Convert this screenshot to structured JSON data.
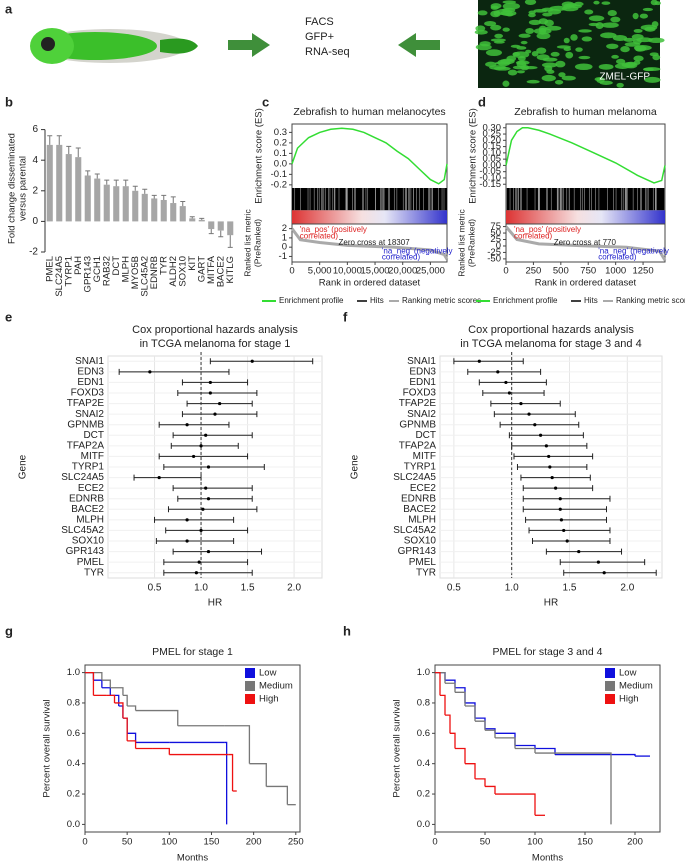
{
  "chart_data": [
    {
      "type": "image-flow",
      "panel": "a",
      "text": [
        "FACS",
        "GFP+",
        "RNA-seq"
      ],
      "image_label": "ZMEL-GFP"
    },
    {
      "type": "bar",
      "panel": "b",
      "ylabel": [
        "Fold change disseminated",
        "versus parental"
      ],
      "categories": [
        "PMEL",
        "SLC24A5",
        "TYRP1",
        "PAH",
        "GPR143",
        "GCH1",
        "RAB32",
        "DCT",
        "MLPH",
        "MYO5B",
        "SLC45A2",
        "EDNRB",
        "TYR",
        "ALDH2",
        "SOX10",
        "KIT",
        "GART",
        "MITFA",
        "BACE2",
        "KITLG"
      ],
      "values": [
        5.0,
        5.0,
        4.4,
        4.2,
        3.0,
        2.8,
        2.4,
        2.3,
        2.3,
        2.0,
        1.8,
        1.5,
        1.4,
        1.2,
        1.0,
        0.2,
        0.1,
        -0.5,
        -0.6,
        -0.9
      ],
      "error": [
        0.6,
        0.6,
        0.5,
        0.6,
        0.3,
        0.3,
        0.3,
        0.4,
        0.4,
        0.3,
        0.3,
        0.2,
        0.3,
        0.4,
        0.3,
        0.1,
        0.1,
        0.3,
        0.4,
        0.8
      ],
      "color": "#a6a6a6",
      "ylim": [
        -2,
        6.3
      ],
      "yticks": [
        -2,
        0,
        2,
        4,
        6
      ]
    },
    {
      "type": "gsea",
      "panel": "c",
      "title": "Zebrafish to human melanocytes",
      "ylabel": "Enrichment score (ES)",
      "y2label": [
        "Ranked list metric",
        "(PreRanked)"
      ],
      "xlabel": "Rank in ordered dataset",
      "xlim": [
        0,
        28000
      ],
      "xticks": [
        0,
        {
          "value": 5000,
          "label": "5,000"
        },
        {
          "value": 10000,
          "label": "10,000"
        },
        {
          "value": 15000,
          "label": "15,000"
        },
        {
          "value": 20000,
          "label": "20,000"
        },
        {
          "value": 25000,
          "label": "25,000"
        }
      ],
      "ylim": [
        -0.23,
        0.38
      ],
      "yticks": [
        0.3,
        0.2,
        0.1,
        {
          "value": 0,
          "label": "0.0"
        },
        -0.1,
        -0.2
      ],
      "y2lim": [
        -1.6,
        2.5
      ],
      "y2ticks": [
        2,
        1,
        0,
        -1
      ],
      "series": [
        {
          "name": "Enrichment profile",
          "color": "#33dd33",
          "x": [
            0,
            1000,
            3000,
            5000,
            7000,
            9000,
            11000,
            13000,
            15000,
            17000,
            19000,
            21000,
            23000,
            25000,
            26500,
            27500,
            28000
          ],
          "values": [
            0,
            0.15,
            0.25,
            0.3,
            0.33,
            0.34,
            0.33,
            0.3,
            0.25,
            0.2,
            0.12,
            0.05,
            -0.05,
            -0.15,
            -0.19,
            -0.15,
            0
          ]
        },
        {
          "name": "Ranking metric scores",
          "color": "#aaaaaa",
          "axis": "y2",
          "x": [
            0,
            1500,
            5000,
            10000,
            18307,
            25000,
            27500,
            28000
          ],
          "values": [
            2,
            0.8,
            0.5,
            0.2,
            0,
            -0.3,
            -0.8,
            -1.3
          ]
        }
      ],
      "hits_label": "Hits",
      "annotations": [
        "'na_pos' (positively",
        "correlated)",
        "Zero cross at 18307",
        "'na_neg' (negatively",
        "correlated)"
      ]
    },
    {
      "type": "gsea",
      "panel": "d",
      "title": "Zebrafish to human melanoma",
      "ylabel": "Enrichment score (ES)",
      "y2label": [
        "Ranked list metric",
        "(PreRanked)"
      ],
      "xlabel": "Rank in ordered dataset",
      "xlim": [
        0,
        1450
      ],
      "xticks": [
        0,
        250,
        500,
        750,
        1000,
        1250
      ],
      "ylim": [
        -0.18,
        0.33
      ],
      "yticks": [
        {
          "value": 0.3,
          "label": "0.30"
        },
        0.25,
        {
          "value": 0.2,
          "label": "0.20"
        },
        0.15,
        {
          "value": 0.1,
          "label": "0.10"
        },
        0.05,
        {
          "value": 0,
          "label": "0.00"
        },
        -0.05,
        {
          "value": -0.1,
          "label": "-0.10"
        },
        -0.15
      ],
      "y2lim": [
        -62,
        85
      ],
      "y2ticks": [
        75,
        50,
        25,
        0,
        -25,
        -50
      ],
      "series": [
        {
          "name": "Enrichment profile",
          "color": "#33dd33",
          "x": [
            0,
            50,
            100,
            150,
            200,
            300,
            400,
            600,
            800,
            1000,
            1200,
            1350,
            1420,
            1450
          ],
          "values": [
            0,
            0.2,
            0.27,
            0.3,
            0.3,
            0.28,
            0.25,
            0.18,
            0.1,
            0.02,
            -0.08,
            -0.14,
            -0.12,
            0
          ]
        },
        {
          "name": "Ranking metric scores",
          "color": "#aaaaaa",
          "axis": "y2",
          "x": [
            0,
            100,
            300,
            700,
            770,
            1100,
            1400,
            1450
          ],
          "values": [
            75,
            25,
            8,
            1,
            0,
            -5,
            -20,
            -55
          ]
        }
      ],
      "hits_label": "Hits",
      "annotations": [
        "'na_pos' (positively",
        "correlated)",
        "Zero cross at 770",
        "'na_neg' (negatively",
        "correlated)"
      ]
    },
    {
      "type": "forest",
      "panel": "e",
      "title": "Cox proportional hazards analysis",
      "subtitle": "in TCGA melanoma for stage 1",
      "xlabel": "HR",
      "ylabel": "Gene",
      "reference_line": 1,
      "grid": true,
      "categories": [
        "SNAI1",
        "EDN3",
        "EDN1",
        "FOXD3",
        "TFAP2E",
        "SNAI2",
        "GPNMB",
        "DCT",
        "TFAP2A",
        "MITF",
        "TYRP1",
        "SLC24A5",
        "ECE2",
        "EDNRB",
        "BACE2",
        "MLPH",
        "SLC45A2",
        "SOX10",
        "GPR143",
        "PMEL",
        "TYR"
      ],
      "values": [
        1.55,
        0.45,
        1.1,
        1.1,
        1.2,
        1.15,
        0.85,
        1.05,
        1.0,
        0.92,
        1.08,
        0.55,
        1.05,
        1.08,
        1.02,
        0.85,
        1.0,
        0.85,
        1.08,
        0.98,
        0.95
      ],
      "ci_low": [
        1.1,
        0.12,
        0.8,
        0.75,
        0.85,
        0.8,
        0.55,
        0.7,
        0.68,
        0.55,
        0.6,
        0.28,
        0.7,
        0.75,
        0.65,
        0.5,
        0.62,
        0.52,
        0.7,
        0.6,
        0.6
      ],
      "ci_high": [
        2.2,
        1.3,
        1.5,
        1.6,
        1.55,
        1.6,
        1.3,
        1.55,
        1.4,
        1.5,
        1.68,
        1.0,
        1.55,
        1.55,
        1.6,
        1.35,
        1.5,
        1.35,
        1.65,
        1.5,
        1.55
      ],
      "xlim": [
        0,
        2.3
      ],
      "xticks": [
        0.5,
        {
          "value": 1,
          "label": "1.0"
        },
        1.5,
        {
          "value": 2,
          "label": "2.0"
        }
      ]
    },
    {
      "type": "forest",
      "panel": "f",
      "title": "Cox proportional hazards analysis",
      "subtitle": "in TCGA melanoma for stage 3 and 4",
      "xlabel": "HR",
      "ylabel": "Gene",
      "reference_line": 1,
      "grid": true,
      "categories": [
        "SNAI1",
        "EDN3",
        "EDN1",
        "FOXD3",
        "TFAP2E",
        "SNAI2",
        "GPNMB",
        "DCT",
        "TFAP2A",
        "MITF",
        "TYRP1",
        "SLC24A5",
        "ECE2",
        "EDNRB",
        "BACE2",
        "MLPH",
        "SLC45A2",
        "SOX10",
        "GPR143",
        "PMEL",
        "TYR"
      ],
      "values": [
        0.72,
        0.88,
        0.95,
        0.98,
        1.08,
        1.15,
        1.2,
        1.25,
        1.3,
        1.32,
        1.33,
        1.35,
        1.38,
        1.42,
        1.42,
        1.43,
        1.45,
        1.48,
        1.58,
        1.75,
        1.8
      ],
      "ci_low": [
        0.5,
        0.62,
        0.72,
        0.75,
        0.82,
        0.85,
        0.9,
        0.98,
        1.0,
        1.02,
        1.05,
        1.08,
        1.1,
        1.1,
        1.1,
        1.12,
        1.15,
        1.18,
        1.3,
        1.42,
        1.45
      ],
      "ci_high": [
        1.1,
        1.25,
        1.3,
        1.28,
        1.42,
        1.55,
        1.58,
        1.62,
        1.65,
        1.7,
        1.65,
        1.68,
        1.7,
        1.85,
        1.82,
        1.82,
        1.85,
        1.85,
        1.95,
        2.15,
        2.25
      ],
      "xlim": [
        0.38,
        2.3
      ],
      "xticks": [
        0.5,
        {
          "value": 1,
          "label": "1.0"
        },
        1.5,
        {
          "value": 2,
          "label": "2.0"
        }
      ]
    },
    {
      "type": "km",
      "panel": "g",
      "title": "PMEL for stage 1",
      "xlabel": "Months",
      "ylabel": "Percent overall survival",
      "xlim": [
        0,
        255
      ],
      "xticks": [
        0,
        50,
        100,
        150,
        200,
        250
      ],
      "ylim": [
        -0.05,
        1.05
      ],
      "yticks": [
        {
          "value": 0,
          "label": "0.0"
        },
        0.2,
        0.4,
        0.6,
        0.8,
        {
          "value": 1,
          "label": "1.0"
        }
      ],
      "series": [
        {
          "name": "Low",
          "color": "#1010dd",
          "x": [
            0,
            10,
            20,
            30,
            40,
            45,
            50,
            60,
            100,
            165,
            168
          ],
          "values": [
            1,
            0.95,
            0.9,
            0.85,
            0.78,
            0.7,
            0.6,
            0.54,
            0.54,
            0.54,
            0
          ]
        },
        {
          "name": "Medium",
          "color": "#777777",
          "x": [
            0,
            20,
            30,
            45,
            50,
            60,
            105,
            110,
            165,
            195,
            215,
            240,
            250
          ],
          "values": [
            1,
            0.95,
            0.9,
            0.85,
            0.78,
            0.75,
            0.75,
            0.65,
            0.65,
            0.4,
            0.25,
            0.13,
            0.13
          ]
        },
        {
          "name": "High",
          "color": "#ee1111",
          "x": [
            0,
            10,
            25,
            35,
            45,
            50,
            60,
            80,
            100,
            170,
            175,
            180
          ],
          "values": [
            1,
            0.85,
            0.85,
            0.8,
            0.7,
            0.55,
            0.5,
            0.5,
            0.46,
            0.46,
            0.22,
            0.22
          ]
        }
      ]
    },
    {
      "type": "km",
      "panel": "h",
      "title": "PMEL for stage 3 and 4",
      "xlabel": "Months",
      "ylabel": "Percent overall survival",
      "xlim": [
        0,
        225
      ],
      "xticks": [
        0,
        50,
        100,
        150,
        200
      ],
      "ylim": [
        -0.05,
        1.05
      ],
      "yticks": [
        {
          "value": 0,
          "label": "0.0"
        },
        0.2,
        0.4,
        0.6,
        0.8,
        {
          "value": 1,
          "label": "1.0"
        }
      ],
      "series": [
        {
          "name": "Low",
          "color": "#1010dd",
          "x": [
            0,
            10,
            20,
            30,
            40,
            50,
            60,
            80,
            100,
            120,
            200,
            215
          ],
          "values": [
            1,
            0.95,
            0.9,
            0.8,
            0.7,
            0.63,
            0.6,
            0.52,
            0.5,
            0.46,
            0.45,
            0.45
          ]
        },
        {
          "name": "Medium",
          "color": "#777777",
          "x": [
            0,
            10,
            20,
            30,
            40,
            50,
            60,
            80,
            100,
            175,
            176
          ],
          "values": [
            1,
            0.93,
            0.87,
            0.78,
            0.68,
            0.62,
            0.57,
            0.5,
            0.47,
            0.47,
            0
          ]
        },
        {
          "name": "High",
          "color": "#ee1111",
          "x": [
            0,
            5,
            10,
            15,
            20,
            30,
            40,
            50,
            60,
            80,
            100,
            110
          ],
          "values": [
            1,
            0.85,
            0.72,
            0.6,
            0.5,
            0.4,
            0.3,
            0.25,
            0.2,
            0.2,
            0.06,
            0.06
          ]
        }
      ]
    }
  ]
}
